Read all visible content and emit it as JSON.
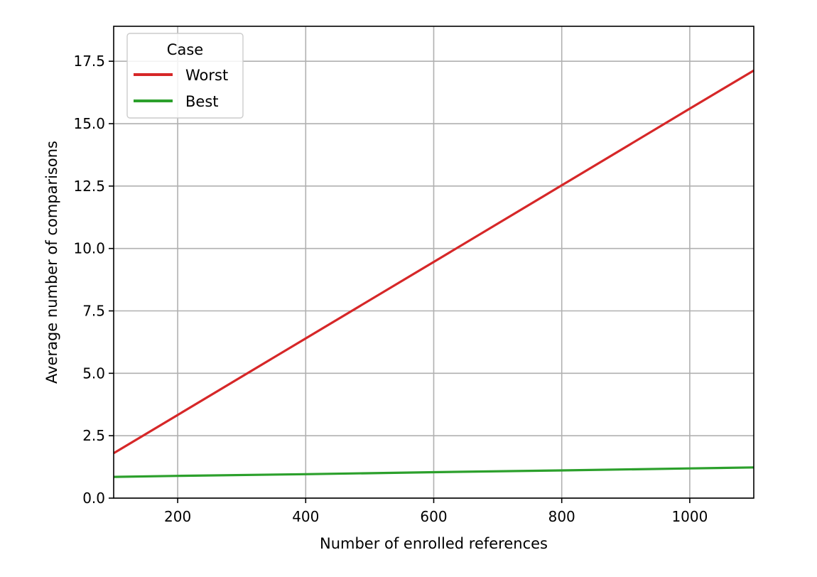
{
  "chart_data": {
    "type": "line",
    "title": "",
    "xlabel": "Number of enrolled references",
    "ylabel": "Average number of comparisons",
    "xlim": [
      100,
      1100
    ],
    "ylim": [
      0,
      18.9
    ],
    "xticks": [
      200,
      400,
      600,
      800,
      1000
    ],
    "yticks": [
      0.0,
      2.5,
      5.0,
      7.5,
      10.0,
      12.5,
      15.0,
      17.5
    ],
    "xtick_labels": [
      "200",
      "400",
      "600",
      "800",
      "1000"
    ],
    "ytick_labels": [
      "0.0",
      "2.5",
      "5.0",
      "7.5",
      "10.0",
      "12.5",
      "15.0",
      "17.5"
    ],
    "grid": true,
    "legend": {
      "title": "Case",
      "placement": "top-left"
    },
    "series": [
      {
        "name": "Worst",
        "color": "#d62728",
        "x": [
          100,
          200,
          400,
          600,
          800,
          1000,
          1100
        ],
        "y": [
          1.8,
          3.33,
          6.4,
          9.46,
          12.53,
          15.6,
          17.13
        ]
      },
      {
        "name": "Best",
        "color": "#2ca02c",
        "x": [
          100,
          200,
          400,
          600,
          800,
          1000,
          1100
        ],
        "y": [
          0.85,
          0.89,
          0.96,
          1.04,
          1.11,
          1.19,
          1.23
        ]
      }
    ]
  }
}
